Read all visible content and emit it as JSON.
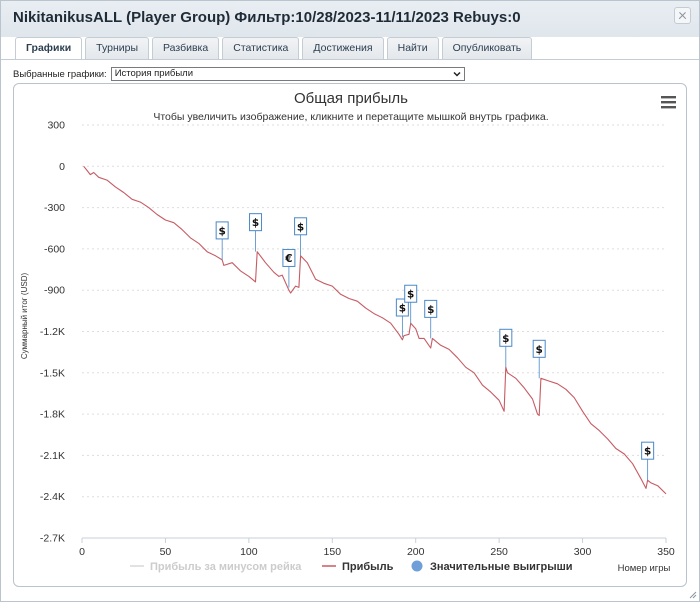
{
  "window": {
    "title": "NikitanikusALL (Player Group) Фильтр:10/28/2023-11/11/2023 Rebuys:0"
  },
  "tabs": [
    {
      "label": "Графики",
      "active": true
    },
    {
      "label": "Турниры",
      "active": false
    },
    {
      "label": "Разбивка",
      "active": false
    },
    {
      "label": "Статистика",
      "active": false
    },
    {
      "label": "Достижения",
      "active": false
    },
    {
      "label": "Найти",
      "active": false
    },
    {
      "label": "Опубликовать",
      "active": false
    }
  ],
  "graph_select": {
    "label": "Выбранные графики:",
    "value": "История прибыли"
  },
  "icons": {
    "menu": "hamburger-menu-icon",
    "close": "close-icon",
    "dropdown": "chevron-down-icon",
    "resize": "resize-grip-icon"
  },
  "colors": {
    "profit_line": "#c75b63",
    "rake_line": "#d8d8d8",
    "marker": "#6f9fd8",
    "grid": "#dddddd",
    "flag_border": "#4a88c7"
  },
  "chart_data": {
    "type": "line",
    "title": "Общая прибыль",
    "subtitle": "Чтобы увеличить изображение, кликните и перетащите мышкой внутрь графика.",
    "xlabel": "Номер игры",
    "ylabel": "Суммарный итог (USD)",
    "xlim": [
      0,
      350
    ],
    "ylim": [
      -2700,
      300
    ],
    "x_ticks": [
      0,
      50,
      100,
      150,
      200,
      250,
      300,
      350
    ],
    "y_ticks": [
      300,
      0,
      -300,
      -600,
      -900,
      -1200,
      -1500,
      -1800,
      -2100,
      -2400,
      -2700
    ],
    "y_tick_labels": [
      "300",
      "0",
      "-300",
      "-600",
      "-900",
      "-1.2K",
      "-1.5K",
      "-1.8K",
      "-2.1K",
      "-2.4K",
      "-2.7K"
    ],
    "grid": "horizontal-dashed",
    "legend_position": "bottom",
    "series": [
      {
        "name": "Прибыль за минусом рейка",
        "visible": false,
        "x": [],
        "y": []
      },
      {
        "name": "Прибыль",
        "x": [
          1,
          3,
          5,
          7,
          10,
          15,
          20,
          25,
          30,
          35,
          40,
          45,
          50,
          55,
          60,
          65,
          70,
          75,
          80,
          84,
          85,
          90,
          95,
          100,
          104,
          105,
          110,
          115,
          118,
          120,
          124,
          125,
          128,
          130,
          131,
          135,
          140,
          145,
          150,
          155,
          160,
          165,
          170,
          175,
          180,
          185,
          190,
          192,
          193,
          196,
          197,
          200,
          202,
          205,
          209,
          210,
          215,
          220,
          225,
          230,
          235,
          240,
          245,
          250,
          253,
          254,
          255,
          260,
          265,
          270,
          273,
          274,
          275,
          280,
          285,
          290,
          295,
          300,
          305,
          310,
          315,
          320,
          325,
          330,
          335,
          338,
          339,
          341,
          345,
          350
        ],
        "y": [
          0,
          -30,
          -60,
          -45,
          -80,
          -100,
          -150,
          -190,
          -240,
          -260,
          -300,
          -350,
          -390,
          -410,
          -460,
          -520,
          -560,
          -620,
          -650,
          -680,
          -720,
          -700,
          -760,
          -800,
          -840,
          -620,
          -700,
          -770,
          -800,
          -790,
          -900,
          -920,
          -870,
          -880,
          -650,
          -700,
          -820,
          -850,
          -870,
          -930,
          -960,
          -980,
          -1030,
          -1070,
          -1100,
          -1140,
          -1220,
          -1260,
          -1230,
          -1220,
          -1140,
          -1180,
          -1250,
          -1250,
          -1320,
          -1250,
          -1300,
          -1330,
          -1390,
          -1460,
          -1500,
          -1590,
          -1640,
          -1700,
          -1780,
          -1460,
          -1500,
          -1540,
          -1610,
          -1690,
          -1800,
          -1810,
          -1540,
          -1560,
          -1580,
          -1620,
          -1680,
          -1780,
          -1870,
          -1920,
          -1980,
          -2050,
          -2090,
          -2160,
          -2270,
          -2340,
          -2280,
          -2300,
          -2320,
          -2380
        ]
      }
    ],
    "big_wins": [
      {
        "x": 84,
        "y": -680,
        "symbol": "$"
      },
      {
        "x": 104,
        "y": -620,
        "symbol": "$"
      },
      {
        "x": 124,
        "y": -880,
        "symbol": "€"
      },
      {
        "x": 131,
        "y": -650,
        "symbol": "$"
      },
      {
        "x": 192,
        "y": -1240,
        "symbol": "$"
      },
      {
        "x": 197,
        "y": -1140,
        "symbol": "$"
      },
      {
        "x": 209,
        "y": -1250,
        "symbol": "$"
      },
      {
        "x": 254,
        "y": -1460,
        "symbol": "$"
      },
      {
        "x": 274,
        "y": -1540,
        "symbol": "$"
      },
      {
        "x": 339,
        "y": -2280,
        "symbol": "$"
      }
    ],
    "legend": [
      {
        "label": "Прибыль за минусом рейка",
        "kind": "line",
        "muted": true
      },
      {
        "label": "Прибыль",
        "kind": "line",
        "muted": false
      },
      {
        "label": "Значительные выигрыши",
        "kind": "marker",
        "muted": false
      }
    ]
  }
}
